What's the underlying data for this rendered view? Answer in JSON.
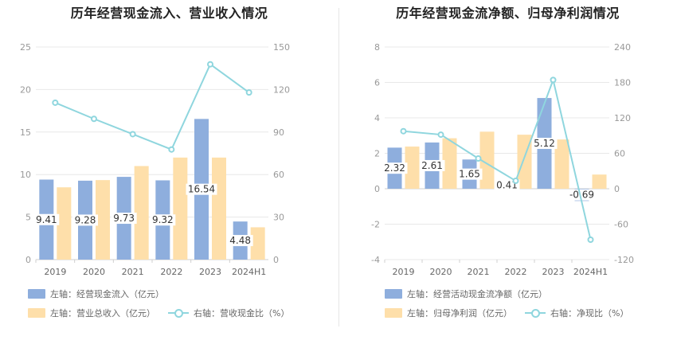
{
  "colors": {
    "bar_primary": "#8eaedd",
    "bar_secondary": "#fedfaa",
    "line": "#8fd6de",
    "grid": "#e8e8e8",
    "axis": "#999999"
  },
  "chart_data": [
    {
      "type": "bar+line",
      "title": "历年经营现金流入、营业收入情况",
      "categories": [
        "2019",
        "2020",
        "2021",
        "2022",
        "2023",
        "2024H1"
      ],
      "y_left": {
        "lim": [
          0,
          25
        ],
        "ticks": [
          "0",
          "5",
          "10",
          "15",
          "20",
          "25"
        ]
      },
      "y_right": {
        "lim": [
          0,
          150
        ],
        "ticks": [
          "0",
          "30",
          "60",
          "90",
          "120",
          "150"
        ]
      },
      "series": [
        {
          "name": "左轴：经营现金流入（亿元）",
          "axis": "left",
          "kind": "bar",
          "values": [
            9.41,
            9.28,
            9.73,
            9.32,
            16.54,
            4.48
          ],
          "labels": [
            "9.41",
            "9.28",
            "9.73",
            "9.32",
            "16.54",
            "4.48"
          ]
        },
        {
          "name": "左轴：营业总收入（亿元）",
          "axis": "left",
          "kind": "bar",
          "values": [
            8.5,
            9.35,
            11.0,
            12.0,
            12.0,
            3.8
          ]
        },
        {
          "name": "右轴：营收现金比（%）",
          "axis": "right",
          "kind": "line",
          "values": [
            110.7,
            99.3,
            88.5,
            77.7,
            137.8,
            117.9
          ]
        }
      ],
      "legend": "bottom",
      "grid": true
    },
    {
      "type": "bar+line",
      "title": "历年经营现金流净额、归母净利润情况",
      "categories": [
        "2019",
        "2020",
        "2021",
        "2022",
        "2023",
        "2024H1"
      ],
      "y_left": {
        "lim": [
          -4,
          8
        ],
        "ticks": [
          "-4",
          "-2",
          "0",
          "2",
          "4",
          "6",
          "8"
        ]
      },
      "y_right": {
        "lim": [
          -120,
          240
        ],
        "ticks": [
          "-120",
          "-60",
          "0",
          "60",
          "120",
          "180",
          "240"
        ]
      },
      "series": [
        {
          "name": "左轴：经营活动现金流净额（亿元）",
          "axis": "left",
          "kind": "bar",
          "values": [
            2.32,
            2.61,
            1.65,
            0.41,
            5.12,
            -0.69
          ],
          "labels": [
            "2.32",
            "2.61",
            "1.65",
            "0.41",
            "5.12",
            "-0.69"
          ]
        },
        {
          "name": "左轴：归母净利润（亿元）",
          "axis": "left",
          "kind": "bar",
          "values": [
            2.38,
            2.85,
            3.22,
            3.05,
            2.78,
            0.8
          ]
        },
        {
          "name": "右轴：净现比（%）",
          "axis": "right",
          "kind": "line",
          "values": [
            97.5,
            91.6,
            51.2,
            13.4,
            184.2,
            -86.3
          ]
        }
      ],
      "legend": "bottom",
      "grid": true
    }
  ]
}
